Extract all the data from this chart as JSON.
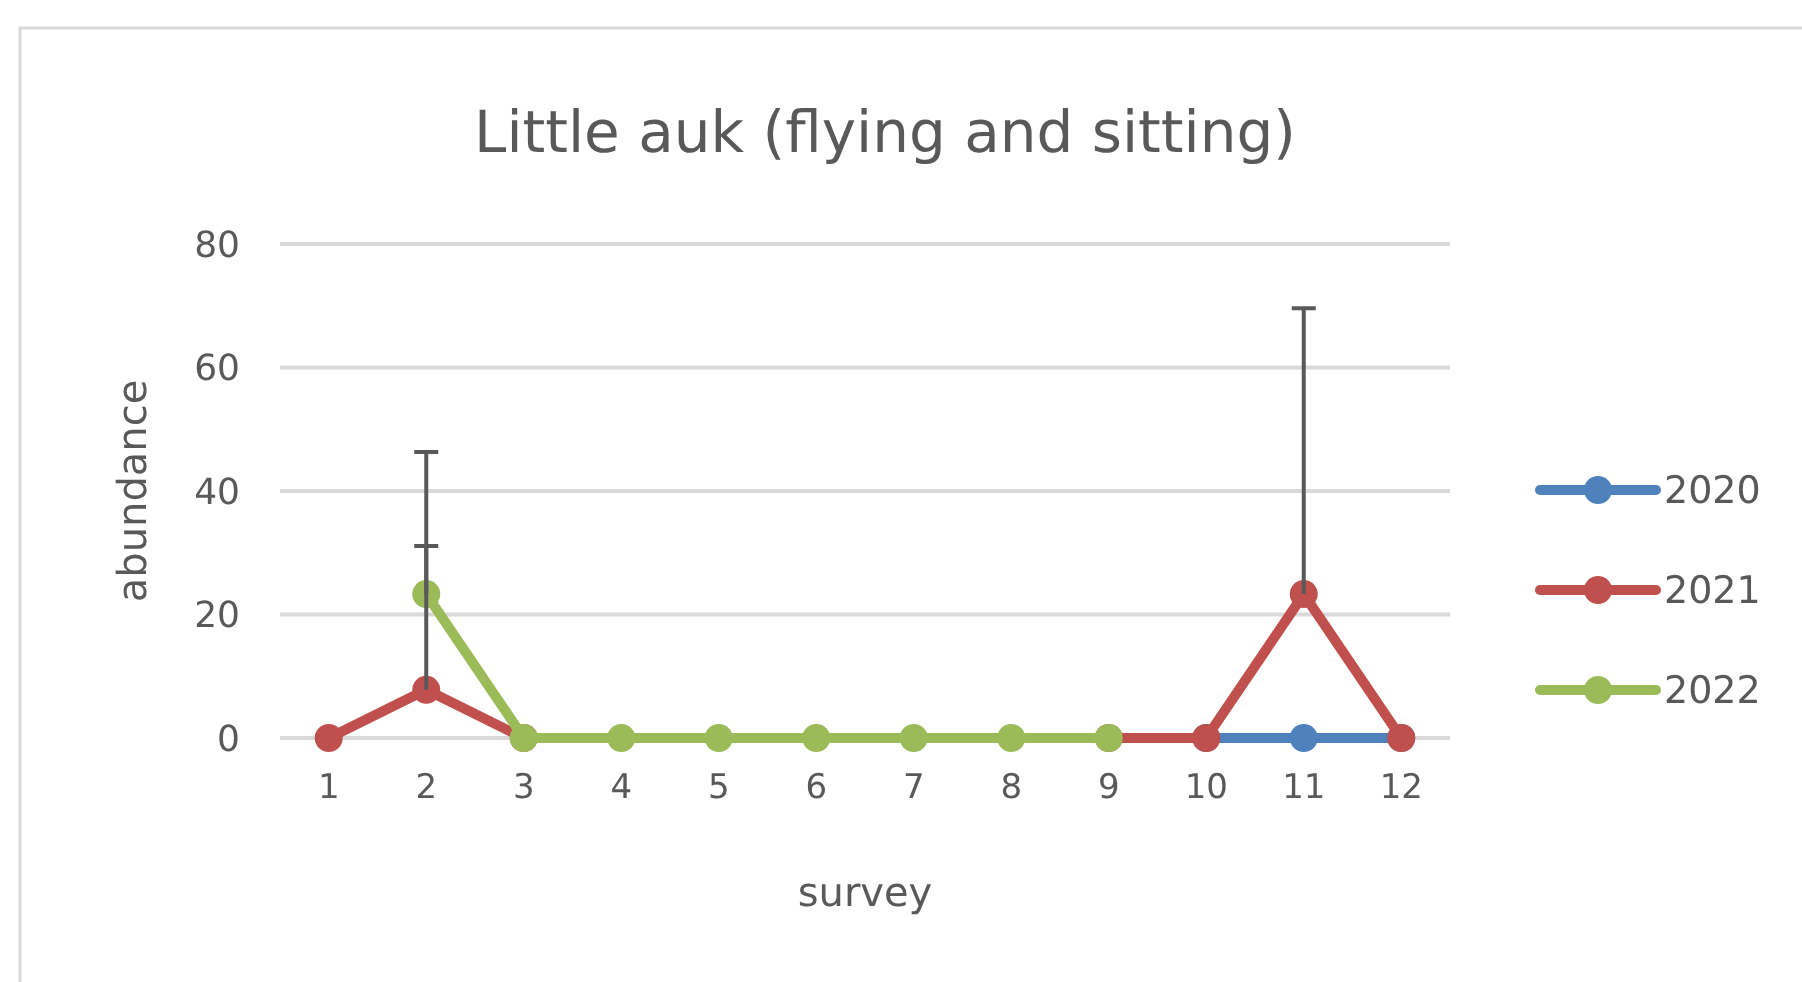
{
  "chart_data": {
    "type": "line",
    "title": "Little auk (flying and sitting)",
    "xlabel": "survey",
    "ylabel": "abundance",
    "x": [
      1,
      2,
      3,
      4,
      5,
      6,
      7,
      8,
      9,
      10,
      11,
      12
    ],
    "xlim": [
      0.5,
      12.5
    ],
    "xticks": [
      1,
      2,
      3,
      4,
      5,
      6,
      7,
      8,
      9,
      10,
      11,
      12
    ],
    "ylim": [
      0,
      80
    ],
    "yticks": [
      0,
      20,
      40,
      60,
      80
    ],
    "grid": "y",
    "legend": "right",
    "marker": "circle",
    "line_style": "solid",
    "series": [
      {
        "name": "2020",
        "color": "#4f81bd",
        "values": [
          null,
          null,
          null,
          null,
          null,
          null,
          null,
          null,
          null,
          0,
          0,
          0
        ]
      },
      {
        "name": "2021",
        "color": "#c0504d",
        "values": [
          0,
          7.8,
          0,
          null,
          null,
          null,
          null,
          null,
          0,
          0,
          23.3,
          0
        ],
        "errors": [
          null,
          [
            7.8,
            31.1
          ],
          null,
          null,
          null,
          null,
          null,
          null,
          null,
          null,
          [
            23.3,
            69.6
          ],
          null
        ]
      },
      {
        "name": "2022",
        "color": "#9bbb59",
        "values": [
          null,
          23.3,
          0,
          0,
          0,
          0,
          0,
          0,
          0,
          null,
          null,
          null
        ],
        "errors": [
          null,
          [
            23.3,
            46.3
          ],
          null,
          null,
          null,
          null,
          null,
          null,
          null,
          null,
          null,
          null
        ]
      }
    ]
  }
}
